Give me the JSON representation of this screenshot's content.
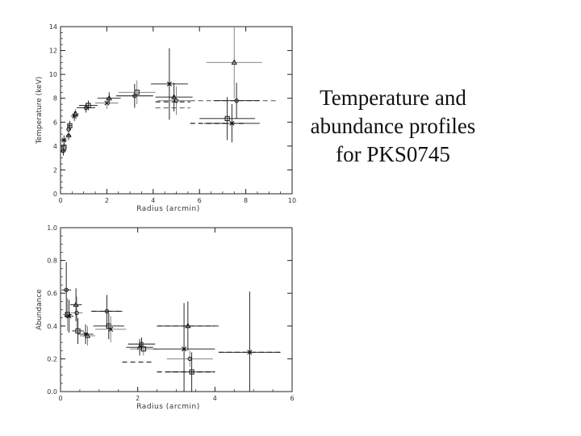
{
  "caption": {
    "line1": "Temperature and",
    "line2": "abundance profiles",
    "line3": "for PKS0745"
  },
  "chart_data": [
    {
      "type": "scatter",
      "xlabel": "Radius (arcmin)",
      "ylabel": "Temperature (keV)",
      "xlim": [
        0,
        10
      ],
      "ylim": [
        0,
        14
      ],
      "x_ticks": [
        "0",
        "2",
        "4",
        "6",
        "8",
        "10"
      ],
      "y_ticks": [
        "0",
        "2",
        "4",
        "6",
        "8",
        "10",
        "12",
        "14"
      ],
      "grid": false,
      "points": [
        {
          "x": 0.12,
          "xerr": 0.12,
          "y": 3.6,
          "yerr": 0.4
        },
        {
          "x": 0.15,
          "xerr": 0.12,
          "y": 3.9,
          "yerr": 0.4
        },
        {
          "x": 0.15,
          "xerr": 0.12,
          "y": 4.5,
          "yerr": 0.4
        },
        {
          "x": 0.35,
          "xerr": 0.1,
          "y": 4.9,
          "yerr": 0.4
        },
        {
          "x": 0.35,
          "xerr": 0.1,
          "y": 5.4,
          "yerr": 0.4
        },
        {
          "x": 0.4,
          "xerr": 0.1,
          "y": 5.7,
          "yerr": 0.4
        },
        {
          "x": 0.6,
          "xerr": 0.15,
          "y": 6.5,
          "yerr": 0.4
        },
        {
          "x": 0.65,
          "xerr": 0.15,
          "y": 6.7,
          "yerr": 0.4
        },
        {
          "x": 1.1,
          "xerr": 0.4,
          "y": 7.2,
          "yerr": 0.4
        },
        {
          "x": 1.2,
          "xerr": 0.4,
          "y": 7.4,
          "yerr": 0.4
        },
        {
          "x": 2.0,
          "xerr": 0.5,
          "y": 7.6,
          "yerr": 0.5
        },
        {
          "x": 2.1,
          "xerr": 0.5,
          "y": 8.0,
          "yerr": 0.5
        },
        {
          "x": 3.2,
          "xerr": 0.8,
          "y": 8.2,
          "yerr": 1.0
        },
        {
          "x": 3.3,
          "xerr": 0.8,
          "y": 8.5,
          "yerr": 1.0
        },
        {
          "x": 4.7,
          "xerr": 0.8,
          "y": 9.2,
          "yerr": 3.0
        },
        {
          "x": 4.9,
          "xerr": 0.8,
          "y": 8.1,
          "yerr": 1.2
        },
        {
          "x": 5.0,
          "xerr": 0.8,
          "y": 7.8,
          "yerr": 1.2
        },
        {
          "x": 7.2,
          "xerr": 1.2,
          "y": 6.3,
          "yerr": 1.8
        },
        {
          "x": 7.4,
          "xerr": 1.2,
          "y": 5.9,
          "yerr": 1.6
        },
        {
          "x": 7.5,
          "xerr": 1.2,
          "y": 11.0,
          "yerr": 3.0
        },
        {
          "x": 7.6,
          "xerr": 1.0,
          "y": 7.8,
          "yerr": 1.5
        }
      ],
      "dashed_levels": [
        {
          "x0": 4.1,
          "x1": 5.6,
          "y": 7.2
        },
        {
          "x0": 4.1,
          "x1": 5.6,
          "y": 7.7
        },
        {
          "x0": 5.6,
          "x1": 9.4,
          "y": 7.8
        },
        {
          "x0": 5.6,
          "x1": 8.0,
          "y": 5.9
        }
      ]
    },
    {
      "type": "scatter",
      "xlabel": "Radius (arcmin)",
      "ylabel": "Abundance",
      "xlim": [
        0,
        6
      ],
      "ylim": [
        0,
        1
      ],
      "x_ticks": [
        "0",
        "2",
        "4",
        "6"
      ],
      "y_ticks": [
        "0.0",
        "0.2",
        "0.4",
        "0.6",
        "0.8",
        "1.0"
      ],
      "grid": false,
      "points": [
        {
          "x": 0.15,
          "xerr": 0.12,
          "y": 0.62,
          "yerr": 0.17
        },
        {
          "x": 0.18,
          "xerr": 0.12,
          "y": 0.47,
          "yerr": 0.1
        },
        {
          "x": 0.22,
          "xerr": 0.12,
          "y": 0.46,
          "yerr": 0.1
        },
        {
          "x": 0.4,
          "xerr": 0.15,
          "y": 0.53,
          "yerr": 0.1
        },
        {
          "x": 0.42,
          "xerr": 0.15,
          "y": 0.48,
          "yerr": 0.1
        },
        {
          "x": 0.45,
          "xerr": 0.15,
          "y": 0.37,
          "yerr": 0.08
        },
        {
          "x": 0.65,
          "xerr": 0.2,
          "y": 0.35,
          "yerr": 0.06
        },
        {
          "x": 0.7,
          "xerr": 0.2,
          "y": 0.34,
          "yerr": 0.06
        },
        {
          "x": 1.2,
          "xerr": 0.4,
          "y": 0.49,
          "yerr": 0.1
        },
        {
          "x": 1.25,
          "xerr": 0.4,
          "y": 0.4,
          "yerr": 0.08
        },
        {
          "x": 1.3,
          "xerr": 0.4,
          "y": 0.38,
          "yerr": 0.08
        },
        {
          "x": 2.05,
          "xerr": 0.35,
          "y": 0.27,
          "yerr": 0.05
        },
        {
          "x": 2.1,
          "xerr": 0.35,
          "y": 0.29,
          "yerr": 0.04
        },
        {
          "x": 2.15,
          "xerr": 0.35,
          "y": 0.26,
          "yerr": 0.04
        },
        {
          "x": 3.2,
          "xerr": 0.8,
          "y": 0.26,
          "yerr": 0.28
        },
        {
          "x": 3.3,
          "xerr": 0.8,
          "y": 0.4,
          "yerr": 0.15
        },
        {
          "x": 3.35,
          "xerr": 0.6,
          "y": 0.2,
          "yerr": 0.05
        },
        {
          "x": 3.4,
          "xerr": 0.6,
          "y": 0.12,
          "yerr": 0.12
        },
        {
          "x": 4.9,
          "xerr": 0.8,
          "y": 0.24,
          "yerr": 0.37
        }
      ],
      "dashed_levels": [
        {
          "x0": 0.8,
          "x1": 1.6,
          "y": 0.49
        },
        {
          "x0": 1.6,
          "x1": 2.4,
          "y": 0.18
        },
        {
          "x0": 2.5,
          "x1": 4.0,
          "y": 0.4
        },
        {
          "x0": 2.5,
          "x1": 4.0,
          "y": 0.12
        },
        {
          "x0": 4.1,
          "x1": 5.7,
          "y": 0.24
        }
      ]
    }
  ]
}
